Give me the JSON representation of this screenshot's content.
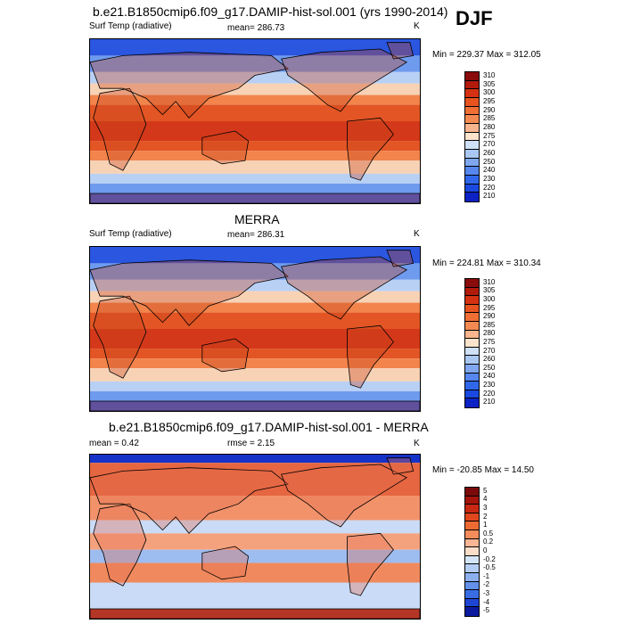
{
  "season": "DJF",
  "panels": [
    {
      "title": "b.e21.B1850cmip6.f09_g17.DAMIP-hist-sol.001 (yrs 1990-2014)",
      "left_label": "Surf Temp (radiative)",
      "center_label": "mean= 286.73",
      "right_label": "K",
      "minmax": "Min = 229.37 Max = 312.05",
      "colorbar_labels": [
        "310",
        "305",
        "300",
        "295",
        "290",
        "285",
        "280",
        "275",
        "270",
        "260",
        "250",
        "240",
        "230",
        "220",
        "210"
      ],
      "colorbar_colors": [
        "#8a0b0b",
        "#b21a0c",
        "#d43212",
        "#e6531f",
        "#f06f35",
        "#f48a51",
        "#f9b58e",
        "#fce3cb",
        "#cfe0f7",
        "#a9c7f2",
        "#7fa6ee",
        "#5686ee",
        "#3066ea",
        "#1a48e0",
        "#0c22c4"
      ],
      "map_type": "absolute"
    },
    {
      "title": "MERRA",
      "left_label": "Surf Temp (radiative)",
      "center_label": "mean= 286.31",
      "right_label": "K",
      "minmax": "Min = 224.81 Max = 310.34",
      "colorbar_labels": [
        "310",
        "305",
        "300",
        "295",
        "290",
        "285",
        "280",
        "275",
        "270",
        "260",
        "250",
        "240",
        "230",
        "220",
        "210"
      ],
      "colorbar_colors": [
        "#8a0b0b",
        "#b21a0c",
        "#d43212",
        "#e6531f",
        "#f06f35",
        "#f48a51",
        "#f9b58e",
        "#fce3cb",
        "#cfe0f7",
        "#a9c7f2",
        "#7fa6ee",
        "#5686ee",
        "#3066ea",
        "#1a48e0",
        "#0c22c4"
      ],
      "map_type": "absolute"
    },
    {
      "title": "b.e21.B1850cmip6.f09_g17.DAMIP-hist-sol.001 - MERRA",
      "left_label": "mean = 0.42",
      "center_label": "rmse = 2.15",
      "right_label": "K",
      "minmax": "Min = -20.85 Max = 14.50",
      "colorbar_labels": [
        "5",
        "4",
        "3",
        "2",
        "1",
        "0.5",
        "0.2",
        "0",
        "-0.2",
        "-0.5",
        "-1",
        "-2",
        "-3",
        "-4",
        "-5"
      ],
      "colorbar_colors": [
        "#7a0a0a",
        "#a5140c",
        "#c92812",
        "#e0471c",
        "#ed6a33",
        "#f58c5b",
        "#f9b594",
        "#fbddc8",
        "#d5e5f8",
        "#b5cdf4",
        "#8cb0ef",
        "#6290ea",
        "#3a6ce4",
        "#1f45d4",
        "#0b1a9e"
      ],
      "map_type": "difference"
    }
  ]
}
